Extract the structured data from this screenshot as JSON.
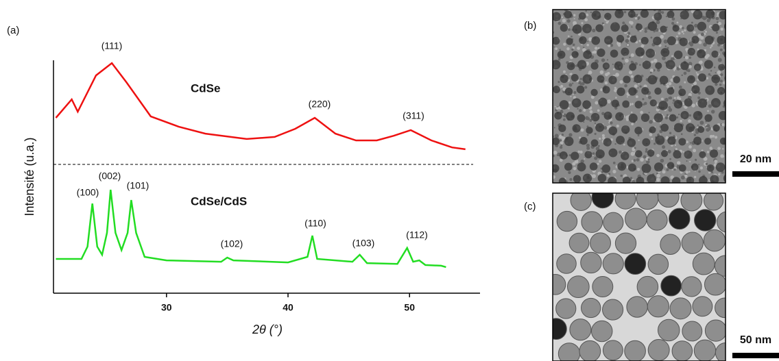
{
  "chart_data": {
    "type": "line",
    "panel_labels": [
      "(a)",
      "(b)",
      "(c)"
    ],
    "xlabel": "2θ (°)",
    "ylabel": "Intensité (u.a.)",
    "xlim": [
      20.7,
      55.8
    ],
    "xticks": [
      30,
      40,
      50
    ],
    "ylim": [
      0,
      100
    ],
    "separator": 55.3,
    "series": [
      {
        "name": "CdSe",
        "color": "#ee1111",
        "x": [
          20.9,
          22.2,
          22.7,
          24.2,
          25.5,
          26.7,
          28.7,
          31.0,
          33.2,
          36.6,
          38.9,
          40.6,
          42.2,
          43.9,
          45.6,
          47.3,
          48.7,
          50.1,
          51.8,
          53.5,
          54.6
        ],
        "values": [
          75.3,
          83.2,
          77.9,
          93.5,
          98.8,
          90.6,
          75.9,
          71.5,
          68.5,
          66.2,
          67.1,
          70.6,
          75.3,
          68.5,
          65.6,
          65.6,
          67.6,
          70.0,
          65.6,
          62.6,
          61.8
        ]
      },
      {
        "name": "CdSe/CdS",
        "color": "#22dd22",
        "x": [
          20.9,
          23.0,
          23.5,
          23.9,
          24.3,
          24.7,
          25.1,
          25.4,
          25.8,
          26.3,
          26.8,
          27.1,
          27.5,
          28.2,
          30.0,
          34.5,
          35.0,
          35.5,
          40.0,
          41.6,
          42.0,
          42.4,
          45.3,
          45.9,
          46.5,
          49.0,
          49.8,
          50.3,
          50.8,
          51.3,
          52.6,
          53.0
        ],
        "values": [
          14.7,
          14.7,
          20.0,
          38.5,
          20.0,
          16.5,
          25.9,
          44.4,
          25.9,
          18.5,
          25.9,
          40.0,
          25.9,
          15.6,
          14.1,
          13.5,
          15.3,
          14.1,
          13.2,
          15.6,
          24.7,
          14.7,
          13.5,
          16.5,
          12.9,
          12.6,
          19.4,
          13.5,
          14.1,
          12.1,
          11.8,
          11.2
        ]
      }
    ],
    "annotations": [
      "(111)",
      "(220)",
      "(311)",
      "(100)",
      "(002)",
      "(101)",
      "(102)",
      "(110)",
      "(103)",
      "(112)"
    ],
    "scale_bars": [
      "20 nm",
      "50 nm"
    ]
  }
}
